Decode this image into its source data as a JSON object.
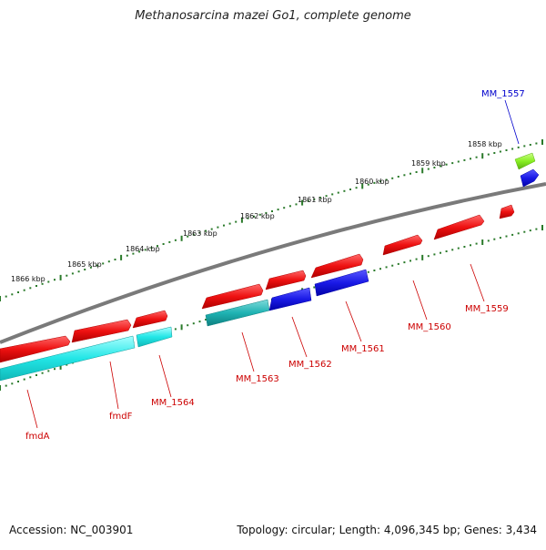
{
  "title": "Methanosarcina mazei Go1, complete genome",
  "footer": {
    "accession": "Accession: NC_003901",
    "summary": "Topology: circular; Length: 4,096,345 bp; Genes: 3,434"
  },
  "colors": {
    "forward_gene": "#ee1111",
    "reverse_gene": "#1a1ae6",
    "cyan_gene": "#22e6e6",
    "teal_gene": "#1fb3b3",
    "green_gene": "#88ee22",
    "backbone": "#808080",
    "tick": "#2a7a2a",
    "red_label": "#cc0000",
    "blue_label": "#0000cc"
  },
  "scale_ticks": [
    {
      "label": "1866 kbp"
    },
    {
      "label": "1865 kbp"
    },
    {
      "label": "1864 kbp"
    },
    {
      "label": "1863 kbp"
    },
    {
      "label": "1862 kbp"
    },
    {
      "label": "1861 kbp"
    },
    {
      "label": "1860 kbp"
    },
    {
      "label": "1859 kbp"
    },
    {
      "label": "1858 kbp"
    }
  ],
  "gene_labels": [
    {
      "name": "fmdA",
      "color": "red"
    },
    {
      "name": "fmdF",
      "color": "red"
    },
    {
      "name": "MM_1564",
      "color": "red"
    },
    {
      "name": "MM_1563",
      "color": "red"
    },
    {
      "name": "MM_1562",
      "color": "red"
    },
    {
      "name": "MM_1561",
      "color": "red"
    },
    {
      "name": "MM_1560",
      "color": "red"
    },
    {
      "name": "MM_1559",
      "color": "red"
    },
    {
      "name": "MM_1557",
      "color": "blue"
    }
  ]
}
